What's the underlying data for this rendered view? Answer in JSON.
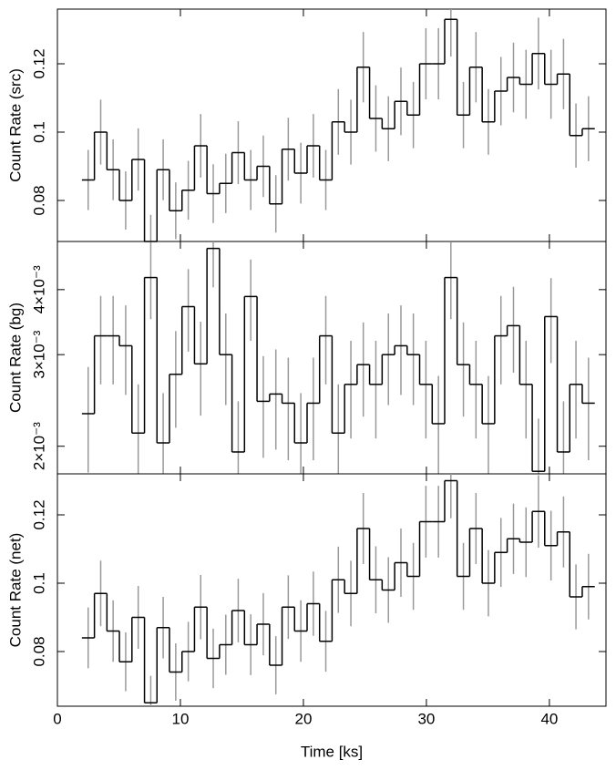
{
  "chart_data": [
    {
      "type": "step",
      "ylabel": "Count Rate (src)",
      "x": [
        2.5,
        3.52,
        4.53,
        5.55,
        6.57,
        7.59,
        8.6,
        9.62,
        10.64,
        11.65,
        12.67,
        13.69,
        14.7,
        15.72,
        16.74,
        17.76,
        18.77,
        19.79,
        20.81,
        21.82,
        22.84,
        23.86,
        24.87,
        25.89,
        26.91,
        27.93,
        28.94,
        29.96,
        30.98,
        31.99,
        33.01,
        34.03,
        35.04,
        36.06,
        37.08,
        38.1,
        39.11,
        40.13,
        41.15,
        42.16,
        43.18
      ],
      "values": [
        0.086,
        0.1,
        0.089,
        0.08,
        0.092,
        0.068,
        0.089,
        0.077,
        0.083,
        0.096,
        0.082,
        0.085,
        0.094,
        0.086,
        0.09,
        0.079,
        0.095,
        0.088,
        0.096,
        0.086,
        0.103,
        0.1,
        0.119,
        0.104,
        0.101,
        0.109,
        0.105,
        0.12,
        0.12,
        0.133,
        0.105,
        0.119,
        0.103,
        0.112,
        0.116,
        0.114,
        0.123,
        0.114,
        0.117,
        0.099,
        0.101
      ],
      "errors": [
        0.0088,
        0.0095,
        0.0089,
        0.0085,
        0.0091,
        0.0078,
        0.0089,
        0.0083,
        0.0086,
        0.0093,
        0.0086,
        0.0087,
        0.0092,
        0.0088,
        0.009,
        0.0084,
        0.0092,
        0.0089,
        0.0093,
        0.0088,
        0.0096,
        0.0095,
        0.0103,
        0.0097,
        0.0095,
        0.0099,
        0.0097,
        0.0104,
        0.0104,
        0.0109,
        0.0097,
        0.0103,
        0.0096,
        0.01,
        0.0102,
        0.0101,
        0.0105,
        0.0101,
        0.0103,
        0.0094,
        0.0095
      ],
      "color": "#000000",
      "error_color": "#999999",
      "xlim": [
        0,
        44.6
      ],
      "xticks": [
        0,
        10,
        20,
        30,
        40
      ],
      "ylim": [
        0.068,
        0.136
      ],
      "yticks": [
        0.08,
        0.1,
        0.12
      ]
    },
    {
      "type": "step",
      "ylabel": "Count Rate (bg)",
      "log": true,
      "x": [
        2.5,
        3.52,
        4.53,
        5.55,
        6.57,
        7.59,
        8.6,
        9.62,
        10.64,
        11.65,
        12.67,
        13.69,
        14.7,
        15.72,
        16.74,
        17.76,
        18.77,
        19.79,
        20.81,
        21.82,
        22.84,
        23.86,
        24.87,
        25.89,
        26.91,
        27.93,
        28.94,
        29.96,
        30.98,
        31.99,
        33.01,
        34.03,
        35.04,
        36.06,
        37.08,
        38.1,
        39.11,
        40.13,
        41.15,
        42.16,
        43.18
      ],
      "values": [
        0.00231,
        0.00326,
        0.00326,
        0.00312,
        0.00212,
        0.00422,
        0.00203,
        0.00275,
        0.00371,
        0.00288,
        0.0048,
        0.003,
        0.00195,
        0.00388,
        0.00244,
        0.00252,
        0.00242,
        0.00203,
        0.00242,
        0.00326,
        0.00212,
        0.00263,
        0.00287,
        0.00263,
        0.003,
        0.00312,
        0.003,
        0.00263,
        0.00221,
        0.00422,
        0.00287,
        0.00263,
        0.00221,
        0.00326,
        0.00341,
        0.00263,
        0.00179,
        0.00355,
        0.00195,
        0.00263,
        0.00242
      ],
      "errors": [
        0.00053,
        0.00063,
        0.00063,
        0.00061,
        0.00051,
        0.00071,
        0.0005,
        0.00058,
        0.00067,
        0.00059,
        0.00076,
        0.0006,
        0.00049,
        0.00069,
        0.00054,
        0.00055,
        0.00054,
        0.0005,
        0.00054,
        0.00063,
        0.00051,
        0.00056,
        0.00059,
        0.00056,
        0.0006,
        0.00061,
        0.0006,
        0.00056,
        0.00052,
        0.00071,
        0.00059,
        0.00056,
        0.00052,
        0.00063,
        0.00064,
        0.00056,
        0.00047,
        0.00066,
        0.00049,
        0.00056,
        0.00054
      ],
      "color": "#000000",
      "error_color": "#999999",
      "xlim": [
        0,
        44.6
      ],
      "xticks": [
        0,
        10,
        20,
        30,
        40
      ],
      "ylim": [
        0.00177,
        0.00495
      ],
      "yticks": [
        {
          "value": 0.002,
          "label": "2×10⁻³"
        },
        {
          "value": 0.003,
          "label": "3×10⁻³"
        },
        {
          "value": 0.004,
          "label": "4×10⁻³"
        }
      ]
    },
    {
      "type": "step",
      "ylabel": "Count Rate (net)",
      "xlabel": "Time [ks]",
      "x": [
        2.5,
        3.52,
        4.53,
        5.55,
        6.57,
        7.59,
        8.6,
        9.62,
        10.64,
        11.65,
        12.67,
        13.69,
        14.7,
        15.72,
        16.74,
        17.76,
        18.77,
        19.79,
        20.81,
        21.82,
        22.84,
        23.86,
        24.87,
        25.89,
        26.91,
        27.93,
        28.94,
        29.96,
        30.98,
        31.99,
        33.01,
        34.03,
        35.04,
        36.06,
        37.08,
        38.1,
        39.11,
        40.13,
        41.15,
        42.16,
        43.18
      ],
      "values": [
        0.084,
        0.097,
        0.086,
        0.077,
        0.09,
        0.065,
        0.087,
        0.074,
        0.08,
        0.093,
        0.078,
        0.082,
        0.092,
        0.082,
        0.088,
        0.076,
        0.093,
        0.086,
        0.094,
        0.083,
        0.101,
        0.097,
        0.116,
        0.101,
        0.098,
        0.106,
        0.102,
        0.118,
        0.118,
        0.13,
        0.102,
        0.116,
        0.1,
        0.109,
        0.113,
        0.112,
        0.121,
        0.111,
        0.115,
        0.096,
        0.099
      ],
      "errors": [
        0.0089,
        0.0096,
        0.009,
        0.0086,
        0.0092,
        0.0079,
        0.009,
        0.0084,
        0.0087,
        0.0094,
        0.0087,
        0.0088,
        0.0093,
        0.0089,
        0.0091,
        0.0085,
        0.0093,
        0.009,
        0.0094,
        0.0089,
        0.0097,
        0.0096,
        0.0104,
        0.0098,
        0.0096,
        0.01,
        0.0098,
        0.0105,
        0.0105,
        0.011,
        0.0098,
        0.0104,
        0.0097,
        0.0101,
        0.0103,
        0.0102,
        0.0106,
        0.0102,
        0.0104,
        0.0095,
        0.0096
      ],
      "color": "#000000",
      "error_color": "#999999",
      "xlim": [
        0,
        44.6
      ],
      "xticks": [
        0,
        10,
        20,
        30,
        40
      ],
      "ylim": [
        0.064,
        0.132
      ],
      "yticks": [
        0.08,
        0.1,
        0.12
      ]
    }
  ]
}
